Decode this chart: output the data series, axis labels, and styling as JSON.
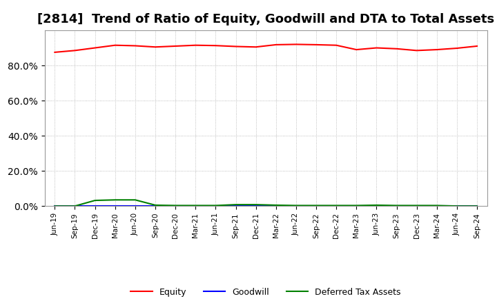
{
  "title": "[2814]  Trend of Ratio of Equity, Goodwill and DTA to Total Assets",
  "x_labels": [
    "Jun-19",
    "Sep-19",
    "Dec-19",
    "Mar-20",
    "Jun-20",
    "Sep-20",
    "Dec-20",
    "Mar-21",
    "Jun-21",
    "Sep-21",
    "Dec-21",
    "Mar-22",
    "Jun-22",
    "Sep-22",
    "Dec-22",
    "Mar-23",
    "Jun-23",
    "Sep-23",
    "Dec-23",
    "Mar-24",
    "Jun-24",
    "Sep-24"
  ],
  "equity": [
    87.5,
    88.5,
    90.0,
    91.5,
    91.2,
    90.5,
    91.0,
    91.5,
    91.3,
    90.8,
    90.5,
    91.8,
    92.0,
    91.8,
    91.5,
    89.0,
    90.0,
    89.5,
    88.5,
    89.0,
    89.8,
    91.0
  ],
  "goodwill": [
    0.0,
    0.0,
    0.0,
    0.0,
    0.0,
    0.0,
    0.0,
    0.0,
    0.0,
    0.0,
    0.0,
    0.0,
    0.0,
    0.0,
    0.0,
    0.0,
    0.0,
    0.0,
    0.0,
    0.0,
    0.0,
    0.0
  ],
  "dta": [
    0.0,
    0.0,
    3.2,
    3.5,
    3.5,
    0.5,
    0.3,
    0.3,
    0.3,
    0.8,
    0.8,
    0.5,
    0.3,
    0.3,
    0.3,
    0.3,
    0.5,
    0.3,
    0.3,
    0.3,
    0.0,
    0.0
  ],
  "equity_color": "#FF0000",
  "goodwill_color": "#0000FF",
  "dta_color": "#008000",
  "background_color": "#FFFFFF",
  "plot_bg_color": "#FFFFFF",
  "grid_color": "#AAAAAA",
  "ylim": [
    0,
    100
  ],
  "ytick_values": [
    0,
    20,
    40,
    60,
    80
  ],
  "title_fontsize": 13,
  "legend_labels": [
    "Equity",
    "Goodwill",
    "Deferred Tax Assets"
  ]
}
